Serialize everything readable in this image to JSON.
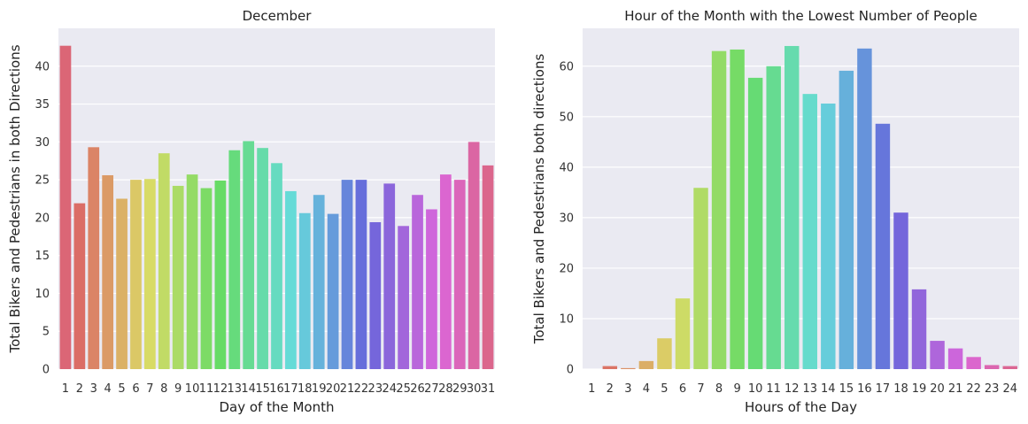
{
  "chart_data": [
    {
      "type": "bar",
      "title": "December",
      "xlabel": "Day of the Month",
      "ylabel": "Total Bikers and Pedestrians in both Directions",
      "categories": [
        "1",
        "2",
        "3",
        "4",
        "5",
        "6",
        "7",
        "8",
        "9",
        "10",
        "11",
        "12",
        "13",
        "14",
        "15",
        "16",
        "17",
        "18",
        "19",
        "20",
        "21",
        "22",
        "23",
        "24",
        "25",
        "26",
        "27",
        "28",
        "29",
        "30",
        "31"
      ],
      "values": [
        42.7,
        21.9,
        29.3,
        25.6,
        22.5,
        25.0,
        25.1,
        28.5,
        24.2,
        25.7,
        23.9,
        24.9,
        28.9,
        30.1,
        29.2,
        27.2,
        23.5,
        20.6,
        23.0,
        20.5,
        25.0,
        25.0,
        19.4,
        24.5,
        18.9,
        23.0,
        21.1,
        25.7,
        25.0,
        30.0,
        26.9
      ],
      "ylim": [
        0,
        45
      ],
      "yticks": [
        0,
        5,
        10,
        15,
        20,
        25,
        30,
        35,
        40
      ],
      "grid": true,
      "palette": "husl"
    },
    {
      "type": "bar",
      "title": "Hour of the Month with the Lowest Number of People",
      "xlabel": "Hours of the Day",
      "ylabel": "Total Bikers and Pedestrians both directions",
      "categories": [
        "1",
        "2",
        "3",
        "4",
        "5",
        "6",
        "7",
        "8",
        "9",
        "10",
        "11",
        "12",
        "13",
        "14",
        "15",
        "16",
        "17",
        "18",
        "19",
        "20",
        "21",
        "22",
        "23",
        "24"
      ],
      "values": [
        0.0,
        0.6,
        0.2,
        1.6,
        6.1,
        14.0,
        35.9,
        63.0,
        63.3,
        57.7,
        60.0,
        64.0,
        54.5,
        52.6,
        59.1,
        63.5,
        48.6,
        31.0,
        15.8,
        5.6,
        4.1,
        2.4,
        0.8,
        0.6
      ],
      "ylim": [
        0,
        67.5
      ],
      "yticks": [
        0,
        10,
        20,
        30,
        40,
        50,
        60
      ],
      "grid": true,
      "palette": "husl"
    }
  ]
}
